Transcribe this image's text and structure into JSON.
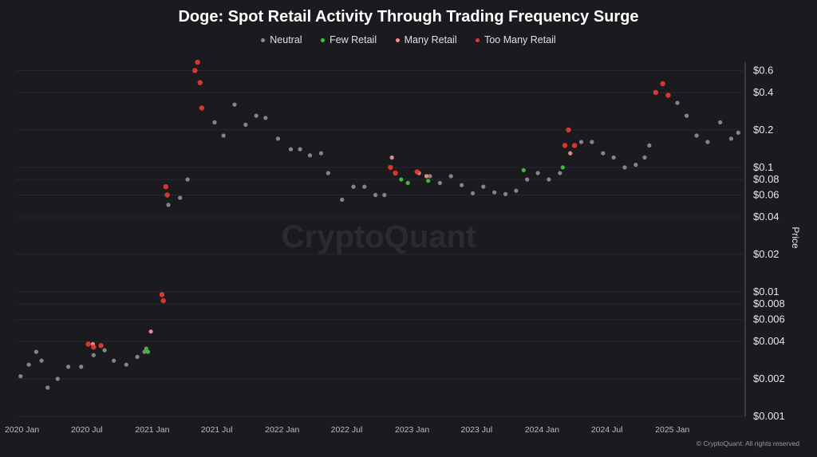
{
  "chart_data": {
    "type": "scatter",
    "title": "Doge: Spot Retail Activity Through Trading Frequency Surge",
    "ylabel": "Price",
    "yscale": "log",
    "ylim": [
      0.001,
      0.7
    ],
    "xlim": [
      "2019-12-15",
      "2025-07-20"
    ],
    "grid": false,
    "legend_position": "top-center",
    "watermark": "CryptoQuant",
    "credit": "© CryptoQuant. All rights reserved",
    "y_ticks": [
      0.6,
      0.4,
      0.2,
      0.1,
      0.08,
      0.06,
      0.04,
      0.02,
      0.01,
      0.008,
      0.006,
      0.004,
      0.002,
      0.001
    ],
    "y_tick_labels": [
      "$0.6",
      "$0.4",
      "$0.2",
      "$0.1",
      "$0.08",
      "$0.06",
      "$0.04",
      "$0.02",
      "$0.01",
      "$0.008",
      "$0.006",
      "$0.004",
      "$0.002",
      "$0.001"
    ],
    "x_ticks": [
      "2020-01-01",
      "2020-07-01",
      "2021-01-01",
      "2021-07-01",
      "2022-01-01",
      "2022-07-01",
      "2023-01-01",
      "2023-07-01",
      "2024-01-01",
      "2024-07-01",
      "2025-01-01"
    ],
    "x_tick_labels": [
      "2020 Jan",
      "2020 Jul",
      "2021 Jan",
      "2021 Jul",
      "2022 Jan",
      "2022 Jul",
      "2023 Jan",
      "2023 Jul",
      "2024 Jan",
      "2024 Jul",
      "2025 Jan"
    ],
    "series": [
      {
        "name": "Neutral",
        "color": "#8a8a95",
        "points": [
          [
            "2019-12-28",
            0.0021
          ],
          [
            "2020-01-20",
            0.0026
          ],
          [
            "2020-02-10",
            0.0033
          ],
          [
            "2020-02-25",
            0.0028
          ],
          [
            "2020-03-13",
            0.0017
          ],
          [
            "2020-04-10",
            0.002
          ],
          [
            "2020-05-10",
            0.0025
          ],
          [
            "2020-06-15",
            0.0025
          ],
          [
            "2020-07-20",
            0.0031
          ],
          [
            "2020-08-20",
            0.0034
          ],
          [
            "2020-09-15",
            0.0028
          ],
          [
            "2020-10-20",
            0.0026
          ],
          [
            "2020-11-20",
            0.003
          ],
          [
            "2020-12-10",
            0.0033
          ],
          [
            "2021-02-15",
            0.05
          ],
          [
            "2021-03-20",
            0.057
          ],
          [
            "2021-04-10",
            0.08
          ],
          [
            "2021-06-25",
            0.23
          ],
          [
            "2021-07-20",
            0.18
          ],
          [
            "2021-08-20",
            0.32
          ],
          [
            "2021-09-20",
            0.22
          ],
          [
            "2021-10-20",
            0.26
          ],
          [
            "2021-11-15",
            0.25
          ],
          [
            "2021-12-20",
            0.17
          ],
          [
            "2022-01-25",
            0.14
          ],
          [
            "2022-02-20",
            0.14
          ],
          [
            "2022-03-20",
            0.125
          ],
          [
            "2022-04-20",
            0.13
          ],
          [
            "2022-05-10",
            0.09
          ],
          [
            "2022-06-18",
            0.055
          ],
          [
            "2022-07-20",
            0.07
          ],
          [
            "2022-08-20",
            0.07
          ],
          [
            "2022-09-20",
            0.06
          ],
          [
            "2022-10-15",
            0.06
          ],
          [
            "2023-02-20",
            0.085
          ],
          [
            "2023-03-20",
            0.075
          ],
          [
            "2023-04-20",
            0.085
          ],
          [
            "2023-05-20",
            0.072
          ],
          [
            "2023-06-20",
            0.062
          ],
          [
            "2023-07-20",
            0.07
          ],
          [
            "2023-08-20",
            0.063
          ],
          [
            "2023-09-20",
            0.061
          ],
          [
            "2023-10-20",
            0.065
          ],
          [
            "2023-11-20",
            0.08
          ],
          [
            "2023-12-20",
            0.09
          ],
          [
            "2024-01-20",
            0.08
          ],
          [
            "2024-02-20",
            0.09
          ],
          [
            "2024-04-20",
            0.16
          ],
          [
            "2024-05-20",
            0.16
          ],
          [
            "2024-06-20",
            0.13
          ],
          [
            "2024-07-20",
            0.12
          ],
          [
            "2024-08-20",
            0.1
          ],
          [
            "2024-09-20",
            0.105
          ],
          [
            "2024-10-15",
            0.12
          ],
          [
            "2024-10-28",
            0.15
          ],
          [
            "2025-01-15",
            0.33
          ],
          [
            "2025-02-10",
            0.26
          ],
          [
            "2025-03-10",
            0.18
          ],
          [
            "2025-04-10",
            0.16
          ],
          [
            "2025-05-15",
            0.23
          ],
          [
            "2025-06-15",
            0.17
          ],
          [
            "2025-07-05",
            0.19
          ]
        ]
      },
      {
        "name": "Few Retail",
        "color": "#3cc33c",
        "points": [
          [
            "2020-12-15",
            0.0035
          ],
          [
            "2020-12-20",
            0.0033
          ],
          [
            "2022-12-01",
            0.08
          ],
          [
            "2022-12-20",
            0.075
          ],
          [
            "2023-02-15",
            0.078
          ],
          [
            "2023-11-10",
            0.095
          ],
          [
            "2024-02-28",
            0.1
          ]
        ]
      },
      {
        "name": "Many Retail",
        "color": "#f0908c",
        "points": [
          [
            "2020-07-18",
            0.0038
          ],
          [
            "2020-12-28",
            0.0048
          ],
          [
            "2022-11-05",
            0.12
          ],
          [
            "2023-01-20",
            0.09
          ],
          [
            "2023-02-10",
            0.085
          ],
          [
            "2024-03-20",
            0.13
          ]
        ]
      },
      {
        "name": "Too Many Retail",
        "color": "#e23a2e",
        "points": [
          [
            "2020-07-05",
            0.0038
          ],
          [
            "2020-07-20",
            0.0036
          ],
          [
            "2020-08-10",
            0.0037
          ],
          [
            "2021-01-28",
            0.0095
          ],
          [
            "2021-02-01",
            0.0085
          ],
          [
            "2021-02-08",
            0.07
          ],
          [
            "2021-02-12",
            0.06
          ],
          [
            "2021-05-01",
            0.6
          ],
          [
            "2021-05-08",
            0.7
          ],
          [
            "2021-05-15",
            0.48
          ],
          [
            "2021-05-20",
            0.3
          ],
          [
            "2022-11-01",
            0.1
          ],
          [
            "2022-11-15",
            0.09
          ],
          [
            "2023-01-15",
            0.092
          ],
          [
            "2024-03-05",
            0.15
          ],
          [
            "2024-03-15",
            0.2
          ],
          [
            "2024-04-01",
            0.15
          ],
          [
            "2024-11-15",
            0.4
          ],
          [
            "2024-12-05",
            0.47
          ],
          [
            "2024-12-20",
            0.38
          ]
        ]
      }
    ]
  }
}
